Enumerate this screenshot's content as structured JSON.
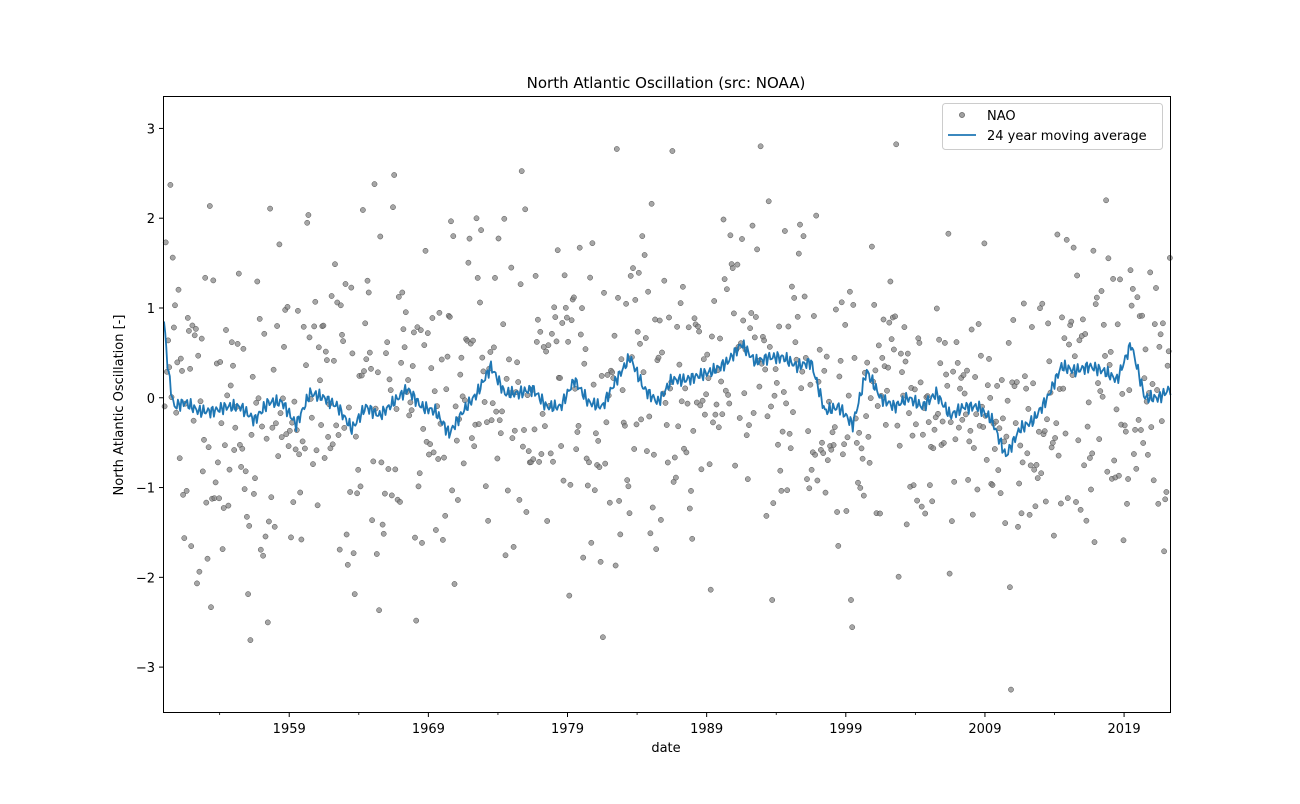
{
  "chart_data": {
    "type": "scatter",
    "title": "North Atlantic Oscillation (src: NOAA)",
    "xlabel": "date",
    "ylabel": "North Atlantic Oscillation [-]",
    "xlim": [
      1950.0,
      2022.3
    ],
    "ylim": [
      -3.5,
      3.35
    ],
    "xticks": [
      {
        "value": 1959,
        "label": "1959"
      },
      {
        "value": 1969,
        "label": "1969"
      },
      {
        "value": 1979,
        "label": "1979"
      },
      {
        "value": 1989,
        "label": "1989"
      },
      {
        "value": 1999,
        "label": "1999"
      },
      {
        "value": 2009,
        "label": "2009"
      },
      {
        "value": 2019,
        "label": "2019"
      }
    ],
    "yticks": [
      {
        "value": 3,
        "label": "3"
      },
      {
        "value": 2,
        "label": "2"
      },
      {
        "value": 1,
        "label": "1"
      },
      {
        "value": 0,
        "label": "0"
      },
      {
        "value": -1,
        "label": "−1"
      },
      {
        "value": -2,
        "label": "−2"
      },
      {
        "value": -3,
        "label": "−3"
      }
    ],
    "minor_xticks": [
      1954,
      1964,
      1974,
      1984,
      1994,
      2004,
      2014
    ],
    "grid": false,
    "legend_position": "top-right",
    "series": [
      {
        "name": "NAO",
        "kind": "scatter",
        "color": "#808080",
        "edge_color": "#505050",
        "note": "monthly NAO index values; individual points are simulated by the script from the moving average plus scatter"
      },
      {
        "name": "24 year moving average",
        "kind": "line",
        "color": "#1f77b4",
        "x": [
          1950.0,
          1950.3,
          1950.7,
          1951.5,
          1952.5,
          1953.5,
          1954.5,
          1955.5,
          1956.5,
          1957.5,
          1958.5,
          1959.5,
          1960.5,
          1961.5,
          1962.5,
          1963.5,
          1964.5,
          1965.5,
          1966.5,
          1967.5,
          1968.5,
          1969.5,
          1970.5,
          1971.5,
          1972.5,
          1973.5,
          1974.5,
          1975.5,
          1976.5,
          1977.5,
          1978.5,
          1979.5,
          1980.5,
          1981.5,
          1982.5,
          1983.5,
          1984.5,
          1985.5,
          1986.5,
          1987.5,
          1988.5,
          1989.5,
          1990.5,
          1991.5,
          1992.5,
          1993.5,
          1994.5,
          1995.5,
          1996.5,
          1997.5,
          1998.5,
          1999.5,
          2000.5,
          2001.5,
          2002.5,
          2003.5,
          2004.5,
          2005.5,
          2006.5,
          2007.5,
          2008.5,
          2009.5,
          2010.5,
          2011.5,
          2012.5,
          2013.5,
          2014.5,
          2015.5,
          2016.5,
          2017.5,
          2018.5,
          2019.5,
          2020.5,
          2021.5,
          2022.3
        ],
        "values": [
          0.85,
          0.3,
          -0.1,
          -0.05,
          -0.15,
          -0.15,
          -0.1,
          -0.1,
          -0.25,
          -0.05,
          -0.05,
          -0.3,
          0.05,
          0.0,
          -0.1,
          -0.35,
          -0.1,
          -0.2,
          -0.05,
          0.1,
          -0.1,
          -0.15,
          -0.4,
          -0.15,
          0.05,
          0.35,
          0.05,
          0.05,
          0.1,
          -0.1,
          -0.1,
          0.2,
          -0.05,
          -0.1,
          0.2,
          0.45,
          0.1,
          -0.05,
          0.2,
          0.2,
          0.25,
          0.3,
          0.4,
          0.6,
          0.4,
          0.45,
          0.45,
          0.35,
          0.4,
          -0.15,
          -0.1,
          -0.3,
          0.3,
          0.0,
          -0.1,
          0.0,
          -0.1,
          0.05,
          -0.2,
          -0.1,
          -0.1,
          -0.25,
          -0.65,
          -0.35,
          -0.25,
          0.0,
          0.35,
          0.3,
          0.35,
          0.3,
          0.2,
          0.6,
          0.0,
          0.0,
          0.1
        ]
      }
    ]
  }
}
